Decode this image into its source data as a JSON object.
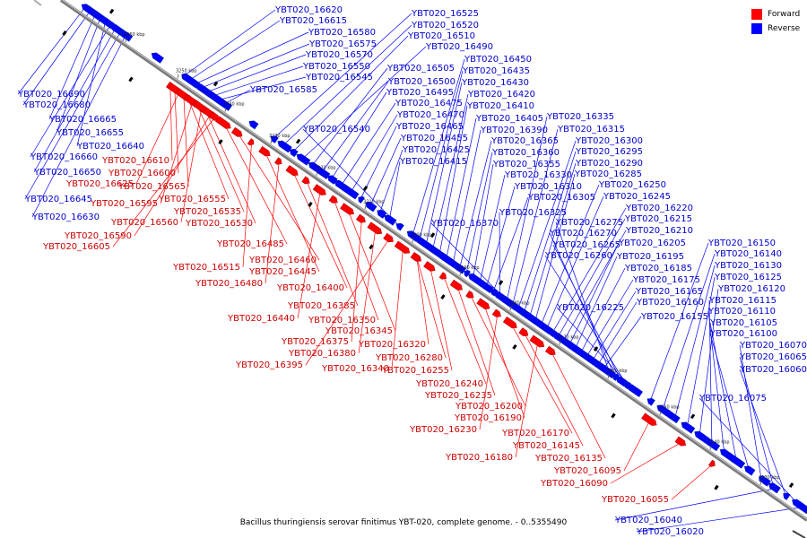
{
  "legend": {
    "forward_label": "Forward",
    "reverse_label": "Reverse",
    "forward_color": "#ff0000",
    "reverse_color": "#0000ff"
  },
  "caption": "Bacillus thuringiensis serovar finitimus YBT-020, complete genome. - 0..5355490",
  "axis": {
    "ticks": [
      "3260 kbp",
      "3250 kbp",
      "3240 kbp",
      "3230 kbp",
      "3220 kbp",
      "3210 kbp",
      "3200 kbp",
      "3190 kbp",
      "3180 kbp",
      "3170 kbp",
      "3160 kbp",
      "3150 kbp",
      "3140 kbp",
      "3130 kbp"
    ]
  },
  "reverse_genes": [
    "YBT020_16620",
    "YBT020_16615",
    "YBT020_16580",
    "YBT020_16575",
    "YBT020_16570",
    "YBT020_16550",
    "YBT020_16545",
    "YBT020_16585",
    "YBT020_16690",
    "YBT020_16680",
    "YBT020_16665",
    "YBT020_16655",
    "YBT020_16640",
    "YBT020_16660",
    "YBT020_16650",
    "YBT020_16645",
    "YBT020_16630",
    "YBT020_16525",
    "YBT020_16520",
    "YBT020_16510",
    "YBT020_16490",
    "YBT020_16505",
    "YBT020_16500",
    "YBT020_16495",
    "YBT020_16475",
    "YBT020_16470",
    "YBT020_16465",
    "YBT020_16455",
    "YBT020_16425",
    "YBT020_16415",
    "YBT020_16540",
    "YBT020_16450",
    "YBT020_16435",
    "YBT020_16430",
    "YBT020_16420",
    "YBT020_16410",
    "YBT020_16405",
    "YBT020_16390",
    "YBT020_16365",
    "YBT020_16360",
    "YBT020_16355",
    "YBT020_16330",
    "YBT020_16310",
    "YBT020_16305",
    "YBT020_16325",
    "YBT020_16370",
    "YBT020_16335",
    "YBT020_16315",
    "YBT020_16300",
    "YBT020_16295",
    "YBT020_16290",
    "YBT020_16285",
    "YBT020_16250",
    "YBT020_16245",
    "YBT020_16220",
    "YBT020_16215",
    "YBT020_16210",
    "YBT020_16205",
    "YBT020_16195",
    "YBT020_16185",
    "YBT020_16175",
    "YBT020_16165",
    "YBT020_16160",
    "YBT020_16155",
    "YBT020_16275",
    "YBT020_16270",
    "YBT020_16265",
    "YBT020_16260",
    "YBT020_16225",
    "YBT020_16150",
    "YBT020_16140",
    "YBT020_16130",
    "YBT020_16125",
    "YBT020_16120",
    "YBT020_16115",
    "YBT020_16110",
    "YBT020_16105",
    "YBT020_16100",
    "YBT020_16070",
    "YBT020_16065",
    "YBT020_16060",
    "YBT020_16075",
    "YBT020_16040",
    "YBT020_16020"
  ],
  "forward_genes": [
    "YBT020_16610",
    "YBT020_16600",
    "YBT020_16625",
    "YBT020_16565",
    "YBT020_16555",
    "YBT020_16595",
    "YBT020_16535",
    "YBT020_16560",
    "YBT020_16530",
    "YBT020_16590",
    "YBT020_16605",
    "YBT020_16485",
    "YBT020_16460",
    "YBT020_16515",
    "YBT020_16445",
    "YBT020_16480",
    "YBT020_16400",
    "YBT020_16385",
    "YBT020_16440",
    "YBT020_16350",
    "YBT020_16345",
    "YBT020_16375",
    "YBT020_16380",
    "YBT020_16395",
    "YBT020_16340",
    "YBT020_16320",
    "YBT020_16280",
    "YBT020_16255",
    "YBT020_16240",
    "YBT020_16235",
    "YBT020_16200",
    "YBT020_16190",
    "YBT020_16230",
    "YBT020_16170",
    "YBT020_16145",
    "YBT020_16180",
    "YBT020_16135",
    "YBT020_16095",
    "YBT020_16090",
    "YBT020_16055"
  ]
}
